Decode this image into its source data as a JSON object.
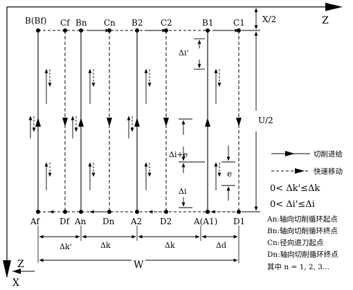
{
  "axes": {
    "z_label": "Z",
    "x_label": "X",
    "z_small": "Z"
  },
  "top_labels": [
    "B(Bf)",
    "Cf",
    "Bn",
    "Cn",
    "B2",
    "C2",
    "B1",
    "C1"
  ],
  "bottom_labels": [
    "Af",
    "Df",
    "An",
    "Dn",
    "A2",
    "D2",
    "A(A1)",
    "D1"
  ],
  "dims": {
    "x_half": "X/2",
    "u_half": "U/2",
    "di_prime": "Δi'",
    "di_plus_e": "Δi+e",
    "di": "Δi",
    "e": "e",
    "dk_prime": "Δk'",
    "dk_1": "Δk",
    "dk_2": "Δk",
    "dd": "Δd",
    "w": "W"
  },
  "legend": {
    "cut_feed": "切削进给",
    "rapid_move": "快速移动"
  },
  "conditions": {
    "k": "0< Δk'≤Δk",
    "i": "0< Δi'≤Δi"
  },
  "notes": [
    "An:轴向切削循环起点",
    "Bn:轴向切削循环终点",
    "Cn:径向退刀起点",
    "Dn:轴向切削循环终点",
    "其中 n = 1, 2, 3..."
  ]
}
